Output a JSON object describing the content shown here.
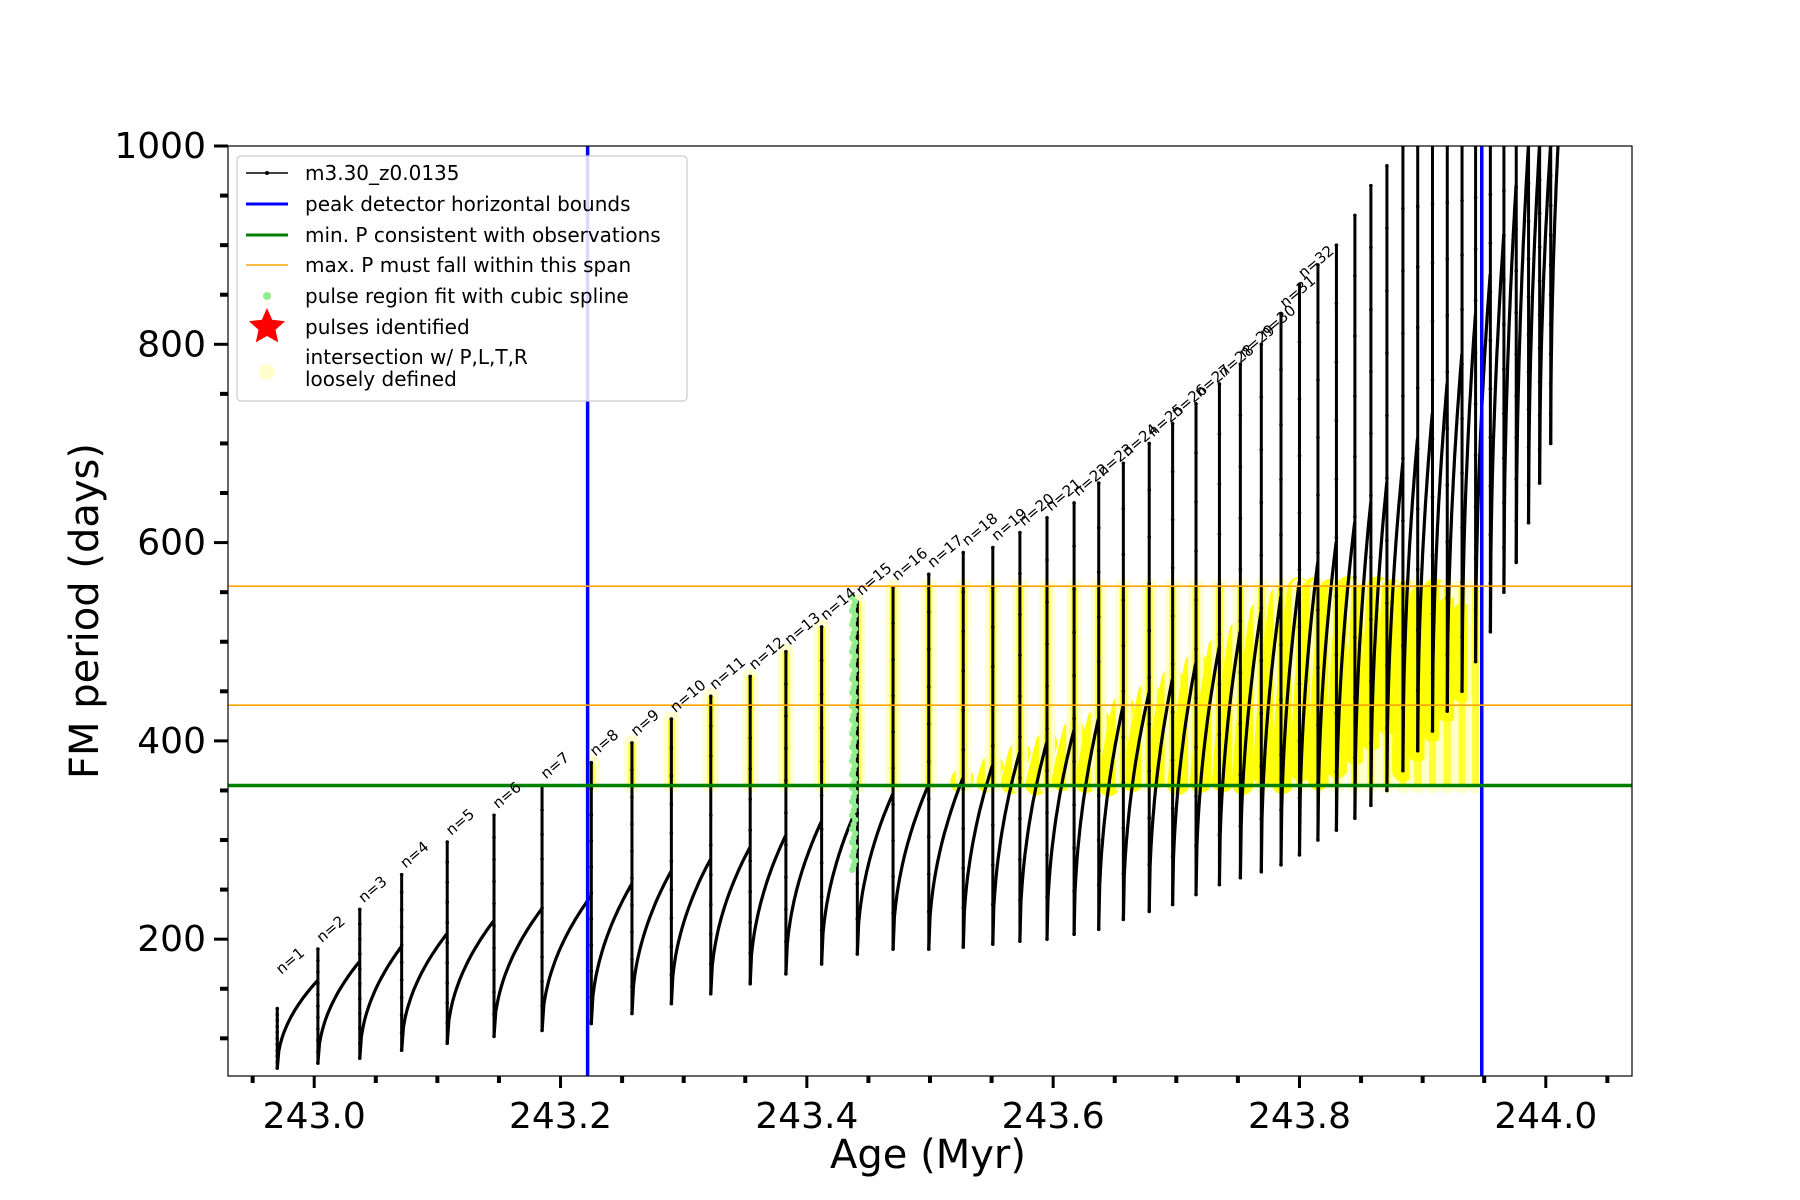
{
  "chart_data": {
    "type": "line",
    "title": "",
    "xlabel": "Age (Myr)",
    "ylabel": "FM period (days)",
    "xlim": [
      242.93,
      244.07
    ],
    "ylim": [
      62,
      1000
    ],
    "x_ticks": [
      "243.0",
      "243.2",
      "243.4",
      "243.6",
      "243.8",
      "244.0"
    ],
    "y_ticks": [
      "200",
      "400",
      "600",
      "800",
      "1000"
    ],
    "grid": false,
    "legend_position": "upper-left",
    "colors": {
      "model": "#000000",
      "bounds": "#0000ff",
      "min_p": "#008000",
      "max_p_span": "#ffa500",
      "spline": "#90ee90",
      "pulses": "#ff0000",
      "intersection": "#ffff00",
      "loose": "#ffffcc"
    },
    "series": [
      {
        "name": "m3.30_z0.0135",
        "kind": "line-markers"
      },
      {
        "name": "peak detector horizontal bounds",
        "kind": "vline",
        "x": [
          243.222,
          243.948
        ]
      },
      {
        "name": "min. P consistent with observations",
        "kind": "hline",
        "y": 355
      },
      {
        "name": "max. P must fall within this span",
        "kind": "hline",
        "y": [
          436,
          556
        ]
      },
      {
        "name": "pulse region fit with cubic spline",
        "kind": "dots"
      },
      {
        "name": "pulses identified",
        "kind": "star"
      },
      {
        "name": "intersection w/ P,L,T,R\nloosely defined",
        "kind": "dots"
      }
    ],
    "pulses": {
      "labels": [
        "n=1",
        "n=2",
        "n=3",
        "n=4",
        "n=5",
        "n=6",
        "n=7",
        "n=8",
        "n=9",
        "n=10",
        "n=11",
        "n=12",
        "n=13",
        "n=14",
        "n=15",
        "n=16",
        "n=17",
        "n=18",
        "n=19",
        "n=20",
        "n=21",
        "n=22",
        "n=23",
        "n=24",
        "n=25",
        "n=26",
        "n=27",
        "n=28",
        "n=29",
        "n=30",
        "n=31",
        "n=32"
      ],
      "x": [
        242.97,
        243.003,
        243.037,
        243.071,
        243.108,
        243.146,
        243.185,
        243.225,
        243.258,
        243.29,
        243.322,
        243.354,
        243.383,
        243.412,
        243.441,
        243.47,
        243.499,
        243.527,
        243.551,
        243.573,
        243.595,
        243.617,
        243.637,
        243.657,
        243.678,
        243.697,
        243.716,
        243.735,
        243.752,
        243.769,
        243.785,
        243.8,
        243.815,
        243.83,
        243.845,
        243.858,
        243.871,
        243.884,
        243.896,
        243.908,
        243.92,
        243.932,
        243.943,
        243.955,
        243.966,
        243.976,
        243.986,
        243.995,
        244.004
      ],
      "peak": [
        130,
        190,
        230,
        265,
        298,
        325,
        355,
        378,
        398,
        422,
        445,
        465,
        490,
        515,
        540,
        555,
        568,
        590,
        595,
        610,
        625,
        640,
        660,
        680,
        700,
        720,
        740,
        760,
        780,
        800,
        830,
        860,
        880,
        900,
        930,
        960,
        980,
        1000,
        1000,
        1000,
        1000,
        1000,
        1000,
        1000,
        1000,
        1000,
        1000,
        1000,
        1000
      ],
      "trough": [
        70,
        75,
        80,
        88,
        95,
        102,
        108,
        115,
        125,
        135,
        145,
        155,
        165,
        175,
        185,
        190,
        190,
        192,
        195,
        198,
        200,
        205,
        210,
        220,
        228,
        235,
        245,
        255,
        262,
        268,
        275,
        285,
        300,
        310,
        322,
        335,
        350,
        370,
        390,
        410,
        430,
        450,
        480,
        510,
        550,
        580,
        620,
        660,
        700
      ],
      "envelope_end": [
        158,
        177,
        192,
        205,
        218,
        230,
        243,
        255,
        268,
        280,
        292,
        304,
        318,
        332,
        346,
        355,
        362,
        375,
        388,
        398,
        410,
        422,
        435,
        448,
        462,
        478,
        494,
        510,
        530,
        545,
        560,
        580,
        600,
        620,
        640,
        660,
        680,
        705,
        730,
        760,
        790,
        830,
        870,
        910,
        960,
        1000,
        1000,
        1000,
        1000
      ],
      "spline_x": 243.438,
      "spline_range": [
        270,
        545
      ]
    }
  }
}
